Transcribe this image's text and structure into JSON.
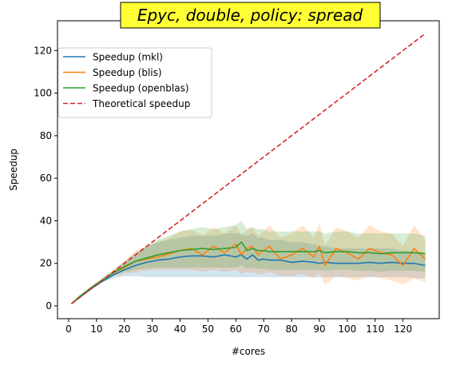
{
  "chart_data": {
    "type": "line",
    "title": "Epyc, double, policy: spread",
    "xlabel": "#cores",
    "ylabel": "Speedup",
    "xlim": [
      -4,
      133
    ],
    "ylim": [
      -6,
      134
    ],
    "xticks": [
      0,
      10,
      20,
      30,
      40,
      50,
      60,
      70,
      80,
      90,
      100,
      110,
      120
    ],
    "yticks": [
      0,
      20,
      40,
      60,
      80,
      100,
      120
    ],
    "grid": false,
    "legend_position": "upper-left",
    "title_background": "#ffff33",
    "x": [
      1,
      4,
      8,
      12,
      16,
      20,
      24,
      28,
      32,
      36,
      40,
      44,
      48,
      52,
      56,
      60,
      62,
      64,
      66,
      68,
      70,
      72,
      76,
      80,
      84,
      88,
      90,
      92,
      96,
      100,
      104,
      108,
      112,
      116,
      120,
      124,
      128
    ],
    "series": [
      {
        "name": "Speedup (mkl)",
        "color": "#1f77b4",
        "style": "solid",
        "values": [
          1,
          4,
          8,
          11.5,
          14.5,
          17,
          19,
          20.5,
          21.5,
          22,
          23,
          23.5,
          23.5,
          23,
          24,
          23,
          24,
          22,
          24,
          21.5,
          22,
          21.5,
          21.5,
          20.5,
          21,
          20.5,
          20,
          20.5,
          20,
          20,
          20,
          20.5,
          20,
          20.5,
          20,
          20,
          19
        ],
        "band_low": [
          1,
          4,
          7.5,
          11,
          13,
          14,
          14,
          13.5,
          13.5,
          13.5,
          13.5,
          13.5,
          13.5,
          13.5,
          13.5,
          13.5,
          13.5,
          13.5,
          13.5,
          13.5,
          13.5,
          13.5,
          13.5,
          13.5,
          13.5,
          13.5,
          13.5,
          13.5,
          13.5,
          13.5,
          13.5,
          13.5,
          13.5,
          13.5,
          13.5,
          13,
          13
        ],
        "band_high": [
          1,
          4,
          8.5,
          12,
          16,
          20,
          24,
          28,
          30,
          31,
          32,
          33,
          33,
          33,
          34,
          34,
          34,
          33,
          34,
          32,
          32,
          31,
          31,
          30,
          30,
          29,
          28,
          28,
          27,
          27,
          27,
          27,
          27,
          27,
          26,
          26,
          25
        ]
      },
      {
        "name": "Speedup (blis)",
        "color": "#ff7f0e",
        "style": "solid",
        "values": [
          1,
          4.5,
          8.5,
          12,
          15.5,
          18,
          21,
          22,
          23,
          24.5,
          26,
          27,
          24,
          28,
          25,
          29,
          24,
          27,
          28,
          24,
          26,
          28,
          22,
          24,
          27,
          23,
          28,
          19,
          27,
          25,
          22,
          27,
          25,
          24,
          19,
          27,
          22
        ],
        "band_low": [
          1,
          4,
          8,
          11,
          14,
          15,
          16,
          16.5,
          17,
          17,
          17,
          17,
          16,
          17,
          16,
          17,
          15,
          16,
          16,
          15,
          15,
          16,
          14,
          14,
          15,
          13,
          15,
          10,
          14,
          13,
          12,
          14,
          13,
          12,
          10,
          13,
          11
        ],
        "band_high": [
          1,
          5,
          9,
          13,
          17,
          21,
          26,
          28,
          30,
          32,
          35,
          36,
          33,
          37,
          34,
          38,
          33,
          36,
          37,
          33,
          35,
          38,
          32,
          34,
          38,
          32,
          39,
          28,
          37,
          35,
          32,
          38,
          35,
          34,
          28,
          38,
          31
        ]
      },
      {
        "name": "Speedup (openblas)",
        "color": "#2ca02c",
        "style": "solid",
        "values": [
          1,
          4.5,
          8.5,
          12,
          15.5,
          18.5,
          21,
          22.5,
          24,
          25,
          26,
          26.5,
          27,
          26.5,
          27,
          27.5,
          30,
          26,
          27,
          26,
          26,
          25.5,
          25.5,
          25.5,
          25.5,
          25.5,
          26,
          25,
          25.5,
          25.5,
          25,
          25,
          24.5,
          25,
          25,
          25,
          24.5
        ],
        "band_low": [
          1,
          4,
          8,
          11,
          14.5,
          16,
          17,
          17.5,
          18,
          18,
          18,
          18,
          18,
          18,
          18,
          18,
          19,
          17.5,
          18,
          17.5,
          17.5,
          17,
          17,
          17,
          17,
          17,
          17,
          16.5,
          17,
          17,
          16.5,
          16.5,
          16,
          16.5,
          16.5,
          16.5,
          16
        ],
        "band_high": [
          1,
          5,
          9,
          13,
          16.5,
          21,
          25,
          28,
          31,
          33,
          35,
          36,
          37,
          36,
          37,
          38,
          40,
          36,
          37,
          36,
          36,
          35,
          35,
          35,
          35,
          35,
          35,
          34,
          35,
          35,
          34,
          34,
          34,
          34,
          34,
          34,
          33
        ]
      },
      {
        "name": "Theoretical speedup",
        "color": "#d62728",
        "style": "dashed",
        "values": [
          1,
          4,
          8,
          12,
          16,
          20,
          24,
          28,
          32,
          36,
          40,
          44,
          48,
          52,
          56,
          60,
          62,
          64,
          66,
          68,
          70,
          72,
          76,
          80,
          84,
          88,
          90,
          92,
          96,
          100,
          104,
          108,
          112,
          116,
          120,
          124,
          128
        ]
      }
    ]
  }
}
